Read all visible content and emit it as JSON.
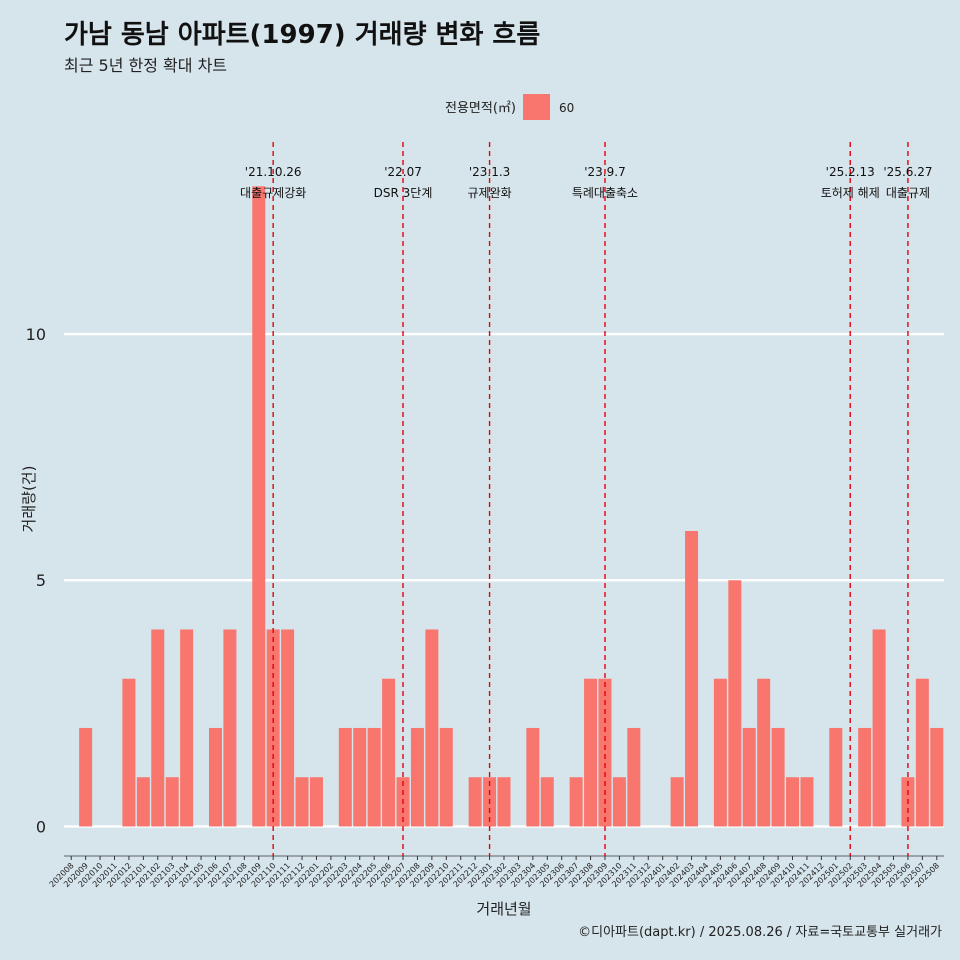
{
  "title": "가남 동남 아파트(1997) 거래량 변화 흐름",
  "subtitle": "최근 5년 한정 확대 차트",
  "caption": "©디아파트(dapt.kr) / 2025.08.26 / 자료=국토교통부 실거래가",
  "colors": {
    "background": "#d6e4eb",
    "bar": "#f8766d",
    "event_line": "#e8000b",
    "grid": "#ffffff"
  },
  "chart_data": {
    "type": "bar",
    "xlabel": "거래년월",
    "ylabel": "거래량(건)",
    "ylim": [
      -0.6,
      13.9
    ],
    "yticks": [
      0,
      5,
      10
    ],
    "grid": "horizontal major lines",
    "legend": {
      "title": "전용면적(㎡)",
      "placement": "top",
      "entries": [
        {
          "label": "60",
          "color": "#f8766d"
        }
      ]
    },
    "categories": [
      "202008",
      "202009",
      "202010",
      "202011",
      "202012",
      "202101",
      "202102",
      "202103",
      "202104",
      "202105",
      "202106",
      "202107",
      "202108",
      "202109",
      "202110",
      "202111",
      "202112",
      "202201",
      "202202",
      "202203",
      "202204",
      "202205",
      "202206",
      "202207",
      "202208",
      "202209",
      "202210",
      "202211",
      "202212",
      "202301",
      "202302",
      "202303",
      "202304",
      "202305",
      "202306",
      "202307",
      "202308",
      "202309",
      "202310",
      "202311",
      "202312",
      "202401",
      "202402",
      "202403",
      "202404",
      "202405",
      "202406",
      "202407",
      "202408",
      "202409",
      "202410",
      "202411",
      "202412",
      "202501",
      "202502",
      "202503",
      "202504",
      "202505",
      "202506",
      "202507",
      "202508"
    ],
    "series": [
      {
        "name": "60",
        "values": [
          0,
          2,
          0,
          0,
          3,
          1,
          4,
          1,
          4,
          0,
          2,
          4,
          0,
          13,
          4,
          4,
          1,
          1,
          0,
          2,
          2,
          2,
          3,
          1,
          2,
          4,
          2,
          0,
          1,
          1,
          1,
          0,
          2,
          1,
          0,
          1,
          3,
          3,
          1,
          2,
          0,
          0,
          1,
          6,
          0,
          3,
          5,
          2,
          3,
          2,
          1,
          1,
          0,
          2,
          0,
          2,
          4,
          0,
          1,
          3,
          2
        ]
      }
    ],
    "events": [
      {
        "x": "202110",
        "date": "'21.10.26",
        "label": "대출규제강화"
      },
      {
        "x": "202207",
        "date": "'22.07",
        "label": "DSR 3단계"
      },
      {
        "x": "202301",
        "date": "'23.1.3",
        "label": "규제완화"
      },
      {
        "x": "202309",
        "date": "'23.9.7",
        "label": "특례대출축소"
      },
      {
        "x": "202502",
        "date": "'25.2.13",
        "label": "토허제 해제"
      },
      {
        "x": "202506",
        "date": "'25.6.27",
        "label": "대출규제"
      }
    ]
  }
}
